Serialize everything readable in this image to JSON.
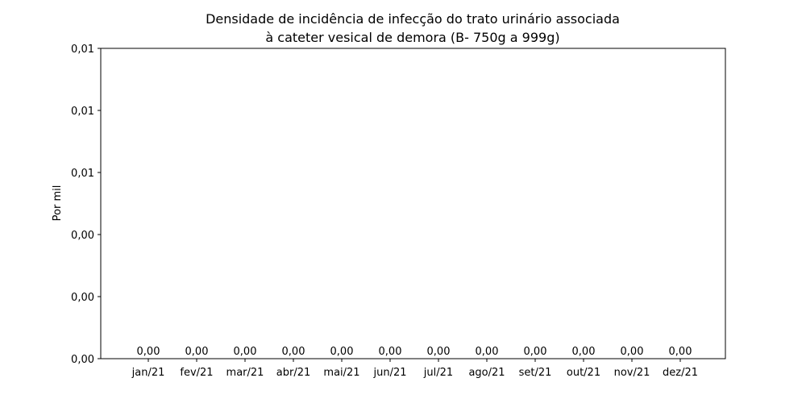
{
  "chart_data": {
    "type": "bar",
    "title_line1": "Densidade de incidência de infecção do trato urinário associada",
    "title_line2": "à cateter vesical de demora (B- 750g a 999g)",
    "xlabel": "",
    "ylabel": "Por mil",
    "categories": [
      "jan/21",
      "fev/21",
      "mar/21",
      "abr/21",
      "mai/21",
      "jun/21",
      "jul/21",
      "ago/21",
      "set/21",
      "out/21",
      "nov/21",
      "dez/21"
    ],
    "values": [
      0,
      0,
      0,
      0,
      0,
      0,
      0,
      0,
      0,
      0,
      0,
      0
    ],
    "data_labels": [
      "0,00",
      "0,00",
      "0,00",
      "0,00",
      "0,00",
      "0,00",
      "0,00",
      "0,00",
      "0,00",
      "0,00",
      "0,00",
      "0,00"
    ],
    "ylim": [
      0,
      0.01
    ],
    "ytick_values": [
      0,
      0.002,
      0.004,
      0.006,
      0.008,
      0.01
    ],
    "ytick_labels": [
      "0,00",
      "0,00",
      "0,00",
      "0,01",
      "0,01",
      "0,01"
    ],
    "grid": false,
    "bar_color": "#1f77b4"
  }
}
